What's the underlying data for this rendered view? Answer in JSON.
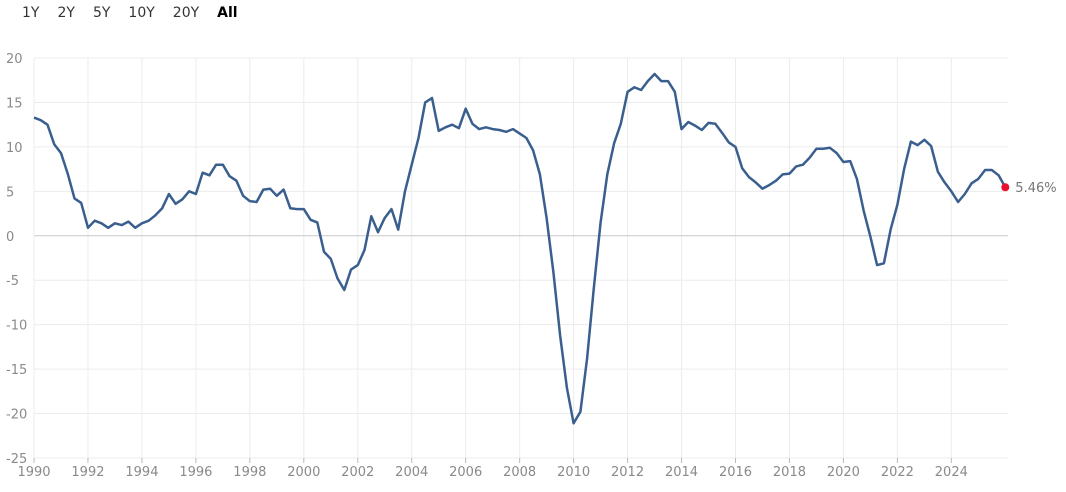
{
  "range_tabs": [
    {
      "label": "1Y",
      "active": false
    },
    {
      "label": "2Y",
      "active": false
    },
    {
      "label": "5Y",
      "active": false
    },
    {
      "label": "10Y",
      "active": false
    },
    {
      "label": "20Y",
      "active": false
    },
    {
      "label": "All",
      "active": true
    }
  ],
  "colors": {
    "line": "#3a5f8f",
    "end_marker": "#e8112d",
    "grid": "#ececec",
    "zero_line": "#c8c8c8"
  },
  "chart_data": {
    "type": "line",
    "title": "",
    "xlabel": "",
    "ylabel": "",
    "xlim": [
      1990,
      2026.1
    ],
    "ylim": [
      -25,
      20
    ],
    "y_ticks": [
      20,
      15,
      10,
      5,
      0,
      -5,
      -10,
      -15,
      -20,
      -25
    ],
    "y_tick_labels": [
      "20",
      "15",
      "10",
      "5",
      "0",
      "-5",
      "-10",
      "-15",
      "-20",
      "-25"
    ],
    "x_ticks": [
      1990,
      1992,
      1994,
      1996,
      1998,
      2000,
      2002,
      2004,
      2006,
      2008,
      2010,
      2012,
      2014,
      2016,
      2018,
      2020,
      2022,
      2024
    ],
    "x_tick_labels": [
      "1990",
      "1992",
      "1994",
      "1996",
      "1998",
      "2000",
      "2002",
      "2004",
      "2006",
      "2008",
      "2010",
      "2012",
      "2014",
      "2016",
      "2018",
      "2020",
      "2022",
      "2024"
    ],
    "grid": true,
    "end_label": "5.46%",
    "series": [
      {
        "x": [
          1990.0,
          1990.25,
          1990.5,
          1990.75,
          1991.0,
          1991.25,
          1991.5,
          1991.75,
          1992.0,
          1992.25,
          1992.5,
          1992.75,
          1993.0,
          1993.25,
          1993.5,
          1993.75,
          1994.0,
          1994.25,
          1994.5,
          1994.75,
          1995.0,
          1995.25,
          1995.5,
          1995.75,
          1996.0,
          1996.25,
          1996.5,
          1996.75,
          1997.0,
          1997.25,
          1997.5,
          1997.75,
          1998.0,
          1998.25,
          1998.5,
          1998.75,
          1999.0,
          1999.25,
          1999.5,
          1999.75,
          2000.0,
          2000.25,
          2000.5,
          2000.75,
          2001.0,
          2001.25,
          2001.5,
          2001.75,
          2002.0,
          2002.25,
          2002.5,
          2002.75,
          2003.0,
          2003.25,
          2003.5,
          2003.75,
          2004.0,
          2004.25,
          2004.5,
          2004.75,
          2005.0,
          2005.25,
          2005.5,
          2005.75,
          2006.0,
          2006.25,
          2006.5,
          2006.75,
          2007.0,
          2007.25,
          2007.5,
          2007.75,
          2008.0,
          2008.25,
          2008.5,
          2008.75,
          2009.0,
          2009.25,
          2009.5,
          2009.75,
          2010.0,
          2010.25,
          2010.5,
          2010.75,
          2011.0,
          2011.25,
          2011.5,
          2011.75,
          2012.0,
          2012.25,
          2012.5,
          2012.75,
          2013.0,
          2013.25,
          2013.5,
          2013.75,
          2014.0,
          2014.25,
          2014.5,
          2014.75,
          2015.0,
          2015.25,
          2015.5,
          2015.75,
          2016.0,
          2016.25,
          2016.5,
          2016.75,
          2017.0,
          2017.25,
          2017.5,
          2017.75,
          2018.0,
          2018.25,
          2018.5,
          2018.75,
          2019.0,
          2019.25,
          2019.5,
          2019.75,
          2020.0,
          2020.25,
          2020.5,
          2020.75,
          2021.0,
          2021.25,
          2021.5,
          2021.75,
          2022.0,
          2022.25,
          2022.5,
          2022.75,
          2023.0,
          2023.25,
          2023.5,
          2023.75,
          2024.0,
          2024.25,
          2024.5,
          2024.75,
          2025.0,
          2025.25,
          2025.5,
          2025.75,
          2026.0
        ],
        "y": [
          13.3,
          13.0,
          12.5,
          10.3,
          9.3,
          7.0,
          4.2,
          3.7,
          0.9,
          1.7,
          1.4,
          0.9,
          1.4,
          1.2,
          1.6,
          0.9,
          1.4,
          1.7,
          2.3,
          3.1,
          4.7,
          3.6,
          4.1,
          5.0,
          4.7,
          7.1,
          6.8,
          8.0,
          8.0,
          6.7,
          6.2,
          4.5,
          3.9,
          3.8,
          5.2,
          5.3,
          4.5,
          5.2,
          3.1,
          3.0,
          3.0,
          1.8,
          1.5,
          -1.8,
          -2.6,
          -4.8,
          -6.1,
          -3.8,
          -3.3,
          -1.6,
          2.2,
          0.4,
          2.0,
          3.0,
          0.7,
          5.0,
          8.0,
          11.0,
          15.0,
          15.5,
          11.8,
          12.2,
          12.5,
          12.1,
          14.3,
          12.6,
          12.0,
          12.2,
          12.0,
          11.9,
          11.7,
          12.0,
          11.5,
          11.0,
          9.6,
          6.9,
          2.0,
          -4.1,
          -11.2,
          -17.1,
          -21.1,
          -19.8,
          -13.8,
          -5.9,
          1.5,
          6.9,
          10.4,
          12.6,
          16.2,
          16.7,
          16.4,
          17.4,
          18.2,
          17.4,
          17.4,
          16.2,
          12.0,
          12.8,
          12.4,
          11.9,
          12.7,
          12.6,
          11.6,
          10.5,
          10.0,
          7.6,
          6.6,
          6.0,
          5.3,
          5.7,
          6.2,
          6.9,
          7.0,
          7.8,
          8.0,
          8.8,
          9.8,
          9.8,
          9.9,
          9.3,
          8.3,
          8.4,
          6.4,
          2.8,
          -0.1,
          -3.3,
          -3.1,
          0.7,
          3.5,
          7.5,
          10.6,
          10.2,
          10.8,
          10.1,
          7.2,
          6.0,
          5.0,
          3.8,
          4.7,
          5.9,
          6.4,
          7.4,
          7.4,
          6.8,
          5.46
        ]
      }
    ]
  }
}
